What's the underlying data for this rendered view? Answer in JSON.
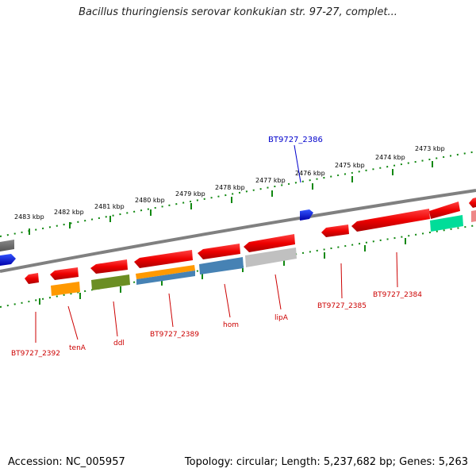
{
  "title": "Bacillus thuringiensis serovar konkukian str. 97-27, complet...",
  "footer": {
    "accession": "Accession: NC_005957",
    "topology": "Topology: circular; Length: 5,237,682 bp; Genes: 5,263"
  },
  "kbp_labels": [
    "2483 kbp",
    "2482 kbp",
    "2481 kbp",
    "2480 kbp",
    "2479 kbp",
    "2478 kbp",
    "2477 kbp",
    "2476 kbp",
    "2475 kbp",
    "2474 kbp",
    "2473 kbp"
  ],
  "highlighted_gene": "BT9727_2386",
  "gene_labels": {
    "bt9727_2392": "BT9727_2392",
    "tena": "tenA",
    "ddl": "ddl",
    "bt9727_2389": "BT9727_2389",
    "hom": "hom",
    "lipa": "lipA",
    "bt9727_2385": "BT9727_2385",
    "bt9727_2384": "BT9727_2384"
  },
  "colors": {
    "gene_red": "#ee1111",
    "label_red": "#cc0000",
    "highlight_blue": "#0000cc",
    "backbone": "#808080",
    "tick_green": "#118811",
    "orange": "#ff9900",
    "olive": "#6b8e23",
    "steelblue": "#4682b4",
    "silver": "#c0c0c0",
    "teal": "#00dd99"
  }
}
